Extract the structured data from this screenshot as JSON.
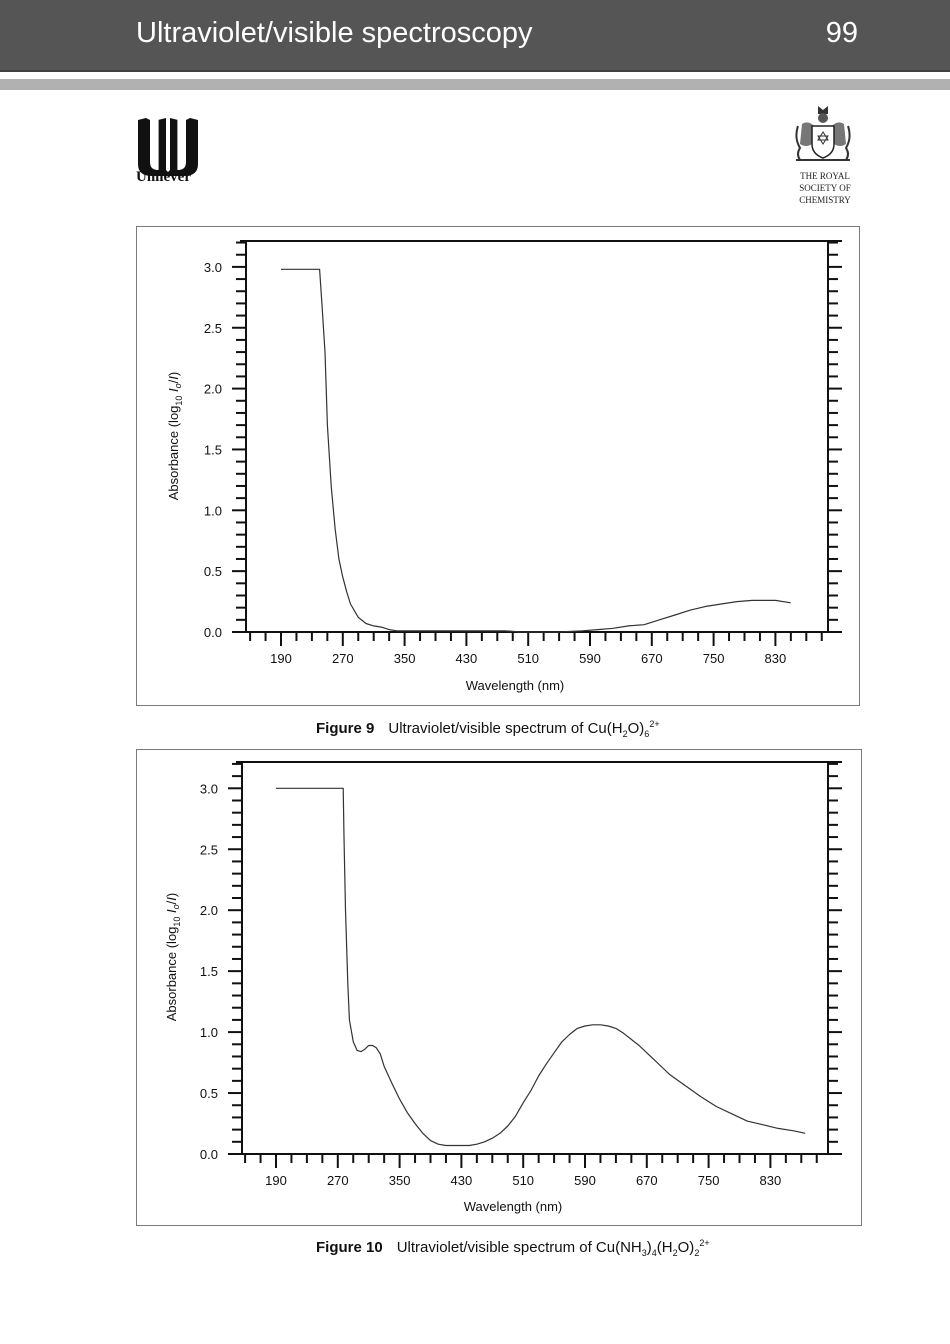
{
  "header": {
    "title": "Ultraviolet/visible spectroscopy",
    "page_number": "99"
  },
  "logos": {
    "left": {
      "name": "Unilever",
      "text": "Unilever"
    },
    "right": {
      "name": "The Royal Society of Chemistry",
      "lines": [
        "THE ROYAL",
        "SOCIETY OF",
        "CHEMISTRY"
      ]
    }
  },
  "figures": [
    {
      "label": "Figure 9",
      "caption_text": "Ultraviolet/visible spectrum of Cu(H",
      "caption_formula": {
        "parts": [
          "Cu(H",
          "2",
          "O)",
          "6",
          "2+"
        ]
      },
      "xlabel": "Wavelength (nm)",
      "ylabel_main": "Absorbance",
      "ylabel_unit": "(log10 Io/I)"
    },
    {
      "label": "Figure 10",
      "caption_text": "Ultraviolet/visible spectrum of Cu(NH",
      "caption_formula": {
        "parts": [
          "Cu(NH",
          "3",
          ")",
          "4",
          "(H",
          "2",
          "O)",
          "2",
          "2+"
        ]
      },
      "xlabel": "Wavelength (nm)",
      "ylabel_main": "Absorbance",
      "ylabel_unit": "(log10 Io/I)"
    }
  ],
  "chart_data": [
    {
      "type": "line",
      "title": "Figure 9 Ultraviolet/visible spectrum of Cu(H2O)6 2+",
      "xlabel": "Wavelength (nm)",
      "ylabel": "Absorbance (log10 Io/I)",
      "x_ticks": [
        190,
        270,
        350,
        430,
        510,
        590,
        670,
        750,
        830
      ],
      "y_ticks": [
        "0.0",
        "0.5",
        "1.0",
        "1.5",
        "2.0",
        "2.5",
        "3.0"
      ],
      "xlim": [
        130,
        900
      ],
      "ylim": [
        0,
        3.2
      ],
      "grid": false,
      "series": [
        {
          "name": "Cu(H2O)6 2+",
          "x": [
            190,
            240,
            243,
            247,
            250,
            255,
            260,
            265,
            270,
            275,
            280,
            290,
            300,
            310,
            320,
            330,
            340,
            360,
            400,
            450,
            480,
            500,
            550,
            580,
            600,
            620,
            640,
            660,
            680,
            700,
            720,
            740,
            760,
            780,
            800,
            830,
            850
          ],
          "y": [
            2.98,
            2.98,
            2.7,
            2.3,
            1.7,
            1.2,
            0.85,
            0.6,
            0.45,
            0.33,
            0.23,
            0.12,
            0.07,
            0.05,
            0.04,
            0.02,
            0.01,
            0.01,
            0.01,
            0.01,
            0.01,
            0.0,
            0.0,
            0.01,
            0.02,
            0.03,
            0.05,
            0.06,
            0.1,
            0.14,
            0.18,
            0.21,
            0.23,
            0.25,
            0.26,
            0.26,
            0.24
          ]
        }
      ]
    },
    {
      "type": "line",
      "title": "Figure 10 Ultraviolet/visible spectrum of Cu(NH3)4(H2O)2 2+",
      "xlabel": "Wavelength (nm)",
      "ylabel": "Absorbance (log10 Io/I)",
      "x_ticks": [
        190,
        270,
        350,
        430,
        510,
        590,
        670,
        750,
        830
      ],
      "y_ticks": [
        "0.0",
        "0.5",
        "1.0",
        "1.5",
        "2.0",
        "2.5",
        "3.0"
      ],
      "xlim": [
        130,
        880
      ],
      "ylim": [
        0,
        3.2
      ],
      "grid": false,
      "series": [
        {
          "name": "Cu(NH3)4(H2O)2 2+",
          "x": [
            190,
            277,
            278,
            280,
            283,
            285,
            290,
            295,
            300,
            305,
            310,
            315,
            320,
            325,
            330,
            340,
            350,
            360,
            370,
            380,
            390,
            400,
            410,
            420,
            430,
            440,
            450,
            460,
            470,
            480,
            490,
            500,
            510,
            520,
            530,
            540,
            550,
            560,
            570,
            580,
            590,
            600,
            610,
            620,
            630,
            640,
            650,
            660,
            670,
            680,
            690,
            700,
            720,
            740,
            760,
            780,
            800,
            820,
            840,
            860,
            875
          ],
          "y": [
            3.0,
            3.0,
            2.6,
            2.0,
            1.4,
            1.1,
            0.92,
            0.85,
            0.84,
            0.86,
            0.89,
            0.89,
            0.87,
            0.82,
            0.72,
            0.58,
            0.45,
            0.34,
            0.25,
            0.17,
            0.11,
            0.08,
            0.07,
            0.07,
            0.07,
            0.07,
            0.08,
            0.1,
            0.13,
            0.17,
            0.23,
            0.31,
            0.42,
            0.52,
            0.64,
            0.74,
            0.83,
            0.92,
            0.98,
            1.03,
            1.05,
            1.06,
            1.06,
            1.05,
            1.03,
            0.99,
            0.94,
            0.89,
            0.83,
            0.77,
            0.71,
            0.65,
            0.56,
            0.47,
            0.39,
            0.33,
            0.27,
            0.24,
            0.21,
            0.19,
            0.17
          ]
        }
      ]
    }
  ]
}
